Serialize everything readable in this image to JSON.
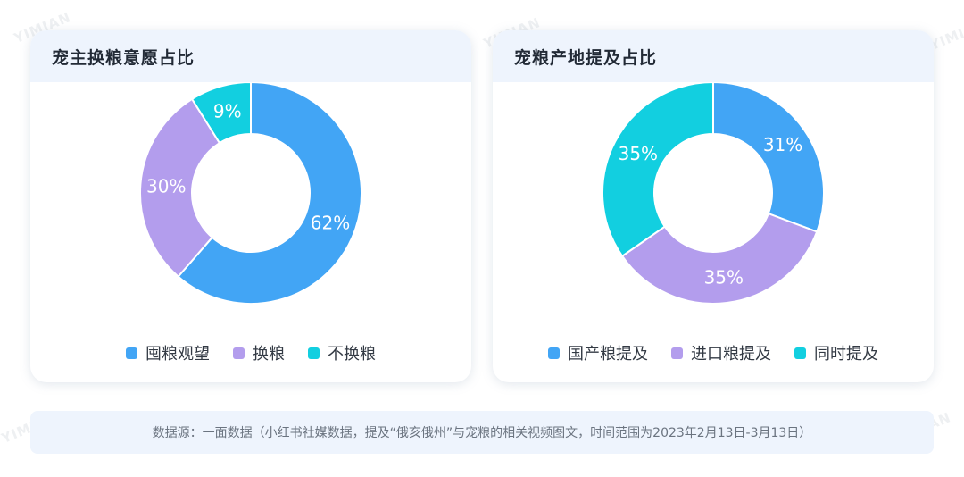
{
  "colors": {
    "blue": "#42a5f5",
    "purple": "#b39ded",
    "cyan": "#12cfe0"
  },
  "watermark_text": "YIMIAN",
  "chart_data": [
    {
      "type": "pie",
      "title": "宠主换粮意愿占比",
      "donut": true,
      "slices": [
        {
          "name": "囤粮观望",
          "value": 62,
          "label": "62%",
          "color": "#42a5f5"
        },
        {
          "name": "换粮",
          "value": 30,
          "label": "30%",
          "color": "#b39ded"
        },
        {
          "name": "不换粮",
          "value": 9,
          "label": "9%",
          "color": "#12cfe0"
        }
      ],
      "legend_position": "bottom"
    },
    {
      "type": "pie",
      "title": "宠粮产地提及占比",
      "donut": true,
      "slices": [
        {
          "name": "国产粮提及",
          "value": 31,
          "label": "31%",
          "color": "#42a5f5"
        },
        {
          "name": "进口粮提及",
          "value": 35,
          "label": "35%",
          "color": "#b39ded"
        },
        {
          "name": "同时提及",
          "value": 35,
          "label": "35%",
          "color": "#12cfe0"
        }
      ],
      "legend_position": "bottom"
    }
  ],
  "source_note": "数据源：一面数据（小红书社媒数据，提及“俄亥俄州”与宠粮的相关视频图文，时间范围为2023年2月13日-3月13日）"
}
